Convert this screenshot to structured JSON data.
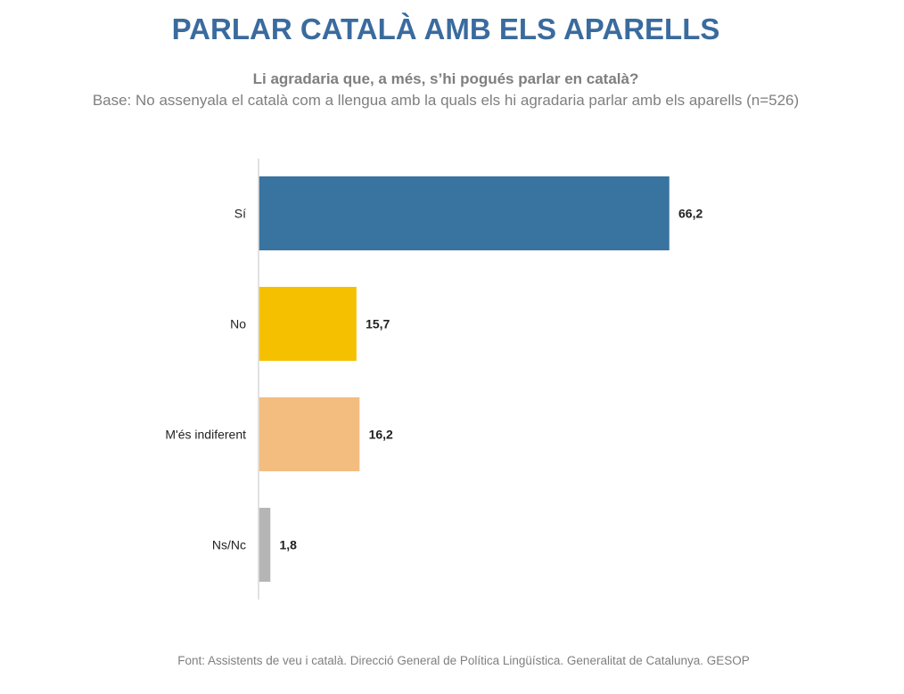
{
  "chart_data": {
    "type": "bar",
    "orientation": "horizontal",
    "title": "PARLAR CATALÀ AMB ELS APARELLS",
    "subtitle": "Li agradaria que, a més, s’hi pogués parlar en català?",
    "base_note": "Base: No assenyala el català com a llengua amb la quals els hi agradaria parlar amb els aparells (n=526)",
    "source": "Font: Assistents de veu i català. Direcció General de Política Lingüística. Generalitat de Catalunya. GESOP",
    "categories": [
      "Sí",
      "No",
      "M'és indiferent",
      "Ns/Nc"
    ],
    "values": [
      66.2,
      15.7,
      16.2,
      1.8
    ],
    "value_labels": [
      "66,2",
      "15,7",
      "16,2",
      "1,8"
    ],
    "colors": [
      "#39739f",
      "#f5c000",
      "#f3bd80",
      "#b5b5b5"
    ],
    "xlabel": "",
    "ylabel": "",
    "xlim": [
      0,
      100
    ],
    "grid": false,
    "legend": "none"
  }
}
